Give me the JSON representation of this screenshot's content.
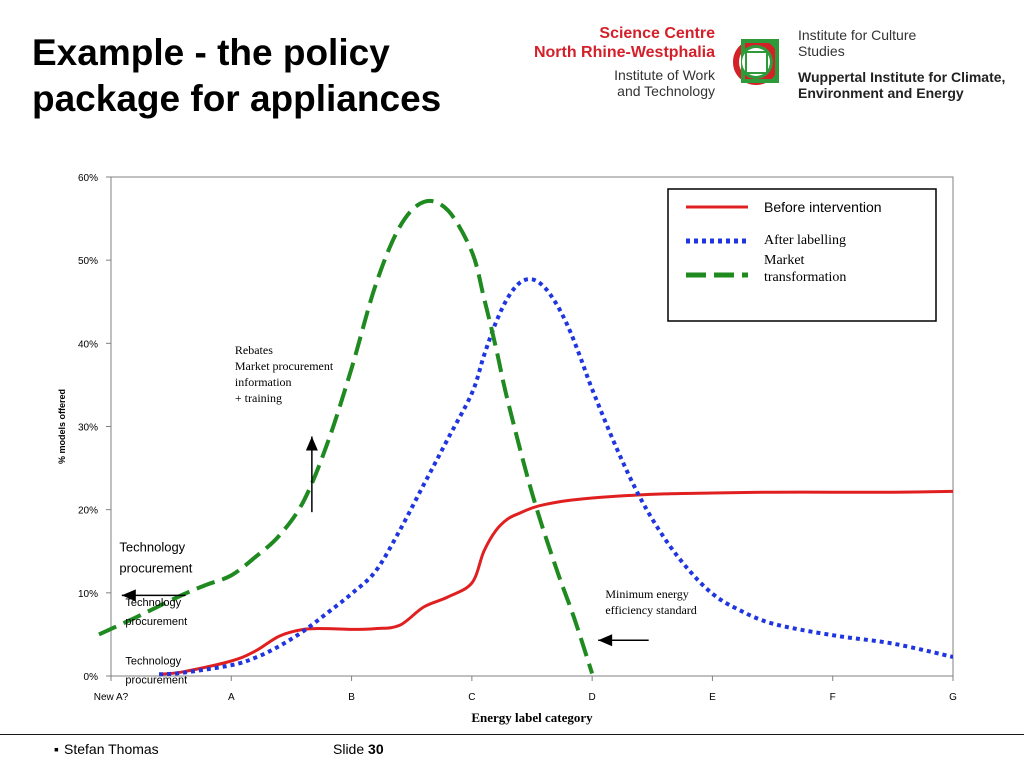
{
  "slide": {
    "title": "Example - the policy package for appliances",
    "footer_author": "Stefan Thomas",
    "footer_slide_label": "Slide",
    "footer_slide_number": "30"
  },
  "logos": {
    "science_centre": {
      "line1": "Science Centre",
      "line2": "North Rhine-Westphalia",
      "line3": "Institute of Work",
      "line4": "and Technology"
    },
    "wuppertal": {
      "line1": "Institute for Culture",
      "line2": "Studies",
      "line3": "Wuppertal Institute for Climate, Environment and Energy"
    }
  },
  "colors": {
    "before": "#e02020",
    "labelling": "#1f35e0",
    "transformation": "#1f8a1f"
  },
  "chart_data": {
    "type": "line",
    "xlabel": "Energy label category",
    "ylabel": "% models offered",
    "categories": [
      "New A?",
      "A",
      "B",
      "C",
      "D",
      "E",
      "F",
      "G"
    ],
    "ylim": [
      0,
      60
    ],
    "yticks": [
      "0%",
      "10%",
      "20%",
      "30%",
      "40%",
      "50%",
      "60%"
    ],
    "legend_position": "top-right",
    "series": [
      {
        "name": "Before intervention",
        "style": "solid",
        "x": [
          0.4,
          0.6,
          1.0,
          1.2,
          1.4,
          1.6,
          1.8,
          2.0,
          2.2,
          2.4,
          2.6,
          2.8,
          3.0,
          3.1,
          3.2,
          3.3,
          3.4,
          3.5,
          3.6,
          3.8,
          4.0,
          4.3,
          4.6,
          5.0,
          5.5,
          6.0,
          6.5,
          7.0
        ],
        "y": [
          0.2,
          0.5,
          1.8,
          3.0,
          4.8,
          5.6,
          5.7,
          5.6,
          5.7,
          6.1,
          8.3,
          9.5,
          11.2,
          15.0,
          17.5,
          18.9,
          19.6,
          20.2,
          20.6,
          21.1,
          21.4,
          21.7,
          21.9,
          22.0,
          22.1,
          22.1,
          22.1,
          22.2
        ]
      },
      {
        "name": "After labelling",
        "style": "dotted",
        "x": [
          0.4,
          0.6,
          1.0,
          1.2,
          1.4,
          1.6,
          1.8,
          2.0,
          2.2,
          2.4,
          2.6,
          2.8,
          3.0,
          3.1,
          3.2,
          3.3,
          3.4,
          3.5,
          3.6,
          3.7,
          3.8,
          3.9,
          4.0,
          4.2,
          4.4,
          4.6,
          4.8,
          5.0,
          5.2,
          5.5,
          6.0,
          6.5,
          7.0
        ],
        "y": [
          0.2,
          0.4,
          1.3,
          2.2,
          3.6,
          5.4,
          7.6,
          9.9,
          12.6,
          17.5,
          23.0,
          28.5,
          34.0,
          38.5,
          42.5,
          45.5,
          47.3,
          47.7,
          46.8,
          44.8,
          42.0,
          38.4,
          34.5,
          27.5,
          21.4,
          16.6,
          12.8,
          9.9,
          8.1,
          6.3,
          4.9,
          3.9,
          2.3
        ]
      },
      {
        "name": "Market transformation",
        "style": "dashed",
        "x": [
          -0.1,
          0.2,
          0.6,
          0.8,
          1.0,
          1.2,
          1.4,
          1.6,
          1.8,
          2.0,
          2.2,
          2.4,
          2.6,
          2.8,
          3.0,
          3.1,
          3.2,
          3.3,
          3.5,
          3.7,
          3.85,
          4.0
        ],
        "y": [
          5.0,
          7.0,
          9.8,
          11.0,
          12.1,
          14.3,
          16.9,
          21.0,
          28.0,
          37.0,
          47.0,
          54.0,
          57.0,
          56.0,
          51.0,
          45.5,
          39.5,
          33.0,
          22.0,
          13.0,
          7.0,
          0.3
        ]
      }
    ],
    "annotations": [
      {
        "name": "rebates",
        "lines": [
          "Rebates",
          "Market procurement",
          "information",
          "+ training"
        ],
        "font": "serif",
        "size": 12,
        "x": 1.03,
        "y": 38.7,
        "arrow": {
          "from": [
            1.67,
            19.7
          ],
          "to": [
            1.67,
            28.8
          ],
          "dir": "up"
        }
      },
      {
        "name": "tech-proc-large",
        "lines": [
          "Technology",
          "procurement"
        ],
        "font": "sans",
        "size": 13,
        "x": 0.07,
        "y": 15.0,
        "arrow": {
          "from": [
            0.62,
            9.7
          ],
          "to": [
            0.09,
            9.7
          ],
          "dir": "left"
        }
      },
      {
        "name": "tech-proc-medium",
        "lines": [
          "Technology",
          "procurement"
        ],
        "font": "sans",
        "size": 11,
        "x": 0.12,
        "y": 8.4
      },
      {
        "name": "tech-proc-small",
        "lines": [
          "Technology",
          "procurement"
        ],
        "font": "sans",
        "size": 11,
        "x": 0.12,
        "y": 1.4
      },
      {
        "name": "min-standard",
        "lines": [
          "Minimum energy",
          "efficiency standard"
        ],
        "font": "serif",
        "size": 12,
        "x": 4.11,
        "y": 9.4,
        "arrow": {
          "from": [
            4.47,
            4.3
          ],
          "to": [
            4.05,
            4.3
          ],
          "dir": "left"
        }
      }
    ]
  }
}
